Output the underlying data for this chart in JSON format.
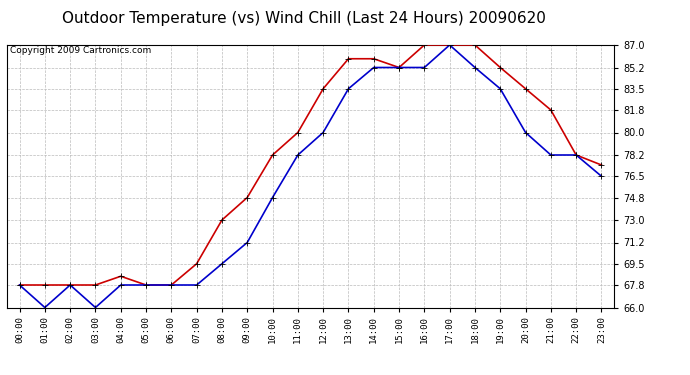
{
  "title": "Outdoor Temperature (vs) Wind Chill (Last 24 Hours) 20090620",
  "copyright": "Copyright 2009 Cartronics.com",
  "hours": [
    "00:00",
    "01:00",
    "02:00",
    "03:00",
    "04:00",
    "05:00",
    "06:00",
    "07:00",
    "08:00",
    "09:00",
    "10:00",
    "11:00",
    "12:00",
    "13:00",
    "14:00",
    "15:00",
    "16:00",
    "17:00",
    "18:00",
    "19:00",
    "20:00",
    "21:00",
    "22:00",
    "23:00"
  ],
  "temp": [
    67.8,
    67.8,
    67.8,
    67.8,
    68.5,
    67.8,
    67.8,
    69.5,
    73.0,
    74.8,
    78.2,
    80.0,
    83.5,
    85.9,
    85.9,
    85.2,
    87.0,
    87.0,
    87.0,
    85.2,
    83.5,
    81.8,
    78.2,
    77.4
  ],
  "windchill": [
    67.8,
    66.0,
    67.8,
    66.0,
    67.8,
    67.8,
    67.8,
    67.8,
    69.5,
    71.2,
    74.8,
    78.2,
    80.0,
    83.5,
    85.2,
    85.2,
    85.2,
    87.0,
    85.2,
    83.5,
    80.0,
    78.2,
    78.2,
    76.5
  ],
  "temp_color": "#cc0000",
  "windchill_color": "#0000cc",
  "ylim": [
    66.0,
    87.0
  ],
  "yticks": [
    66.0,
    67.8,
    69.5,
    71.2,
    73.0,
    74.8,
    76.5,
    78.2,
    80.0,
    81.8,
    83.5,
    85.2,
    87.0
  ],
  "bg_color": "#ffffff",
  "grid_color": "#bbbbbb",
  "title_fontsize": 11,
  "copyright_fontsize": 6.5,
  "marker": "+"
}
